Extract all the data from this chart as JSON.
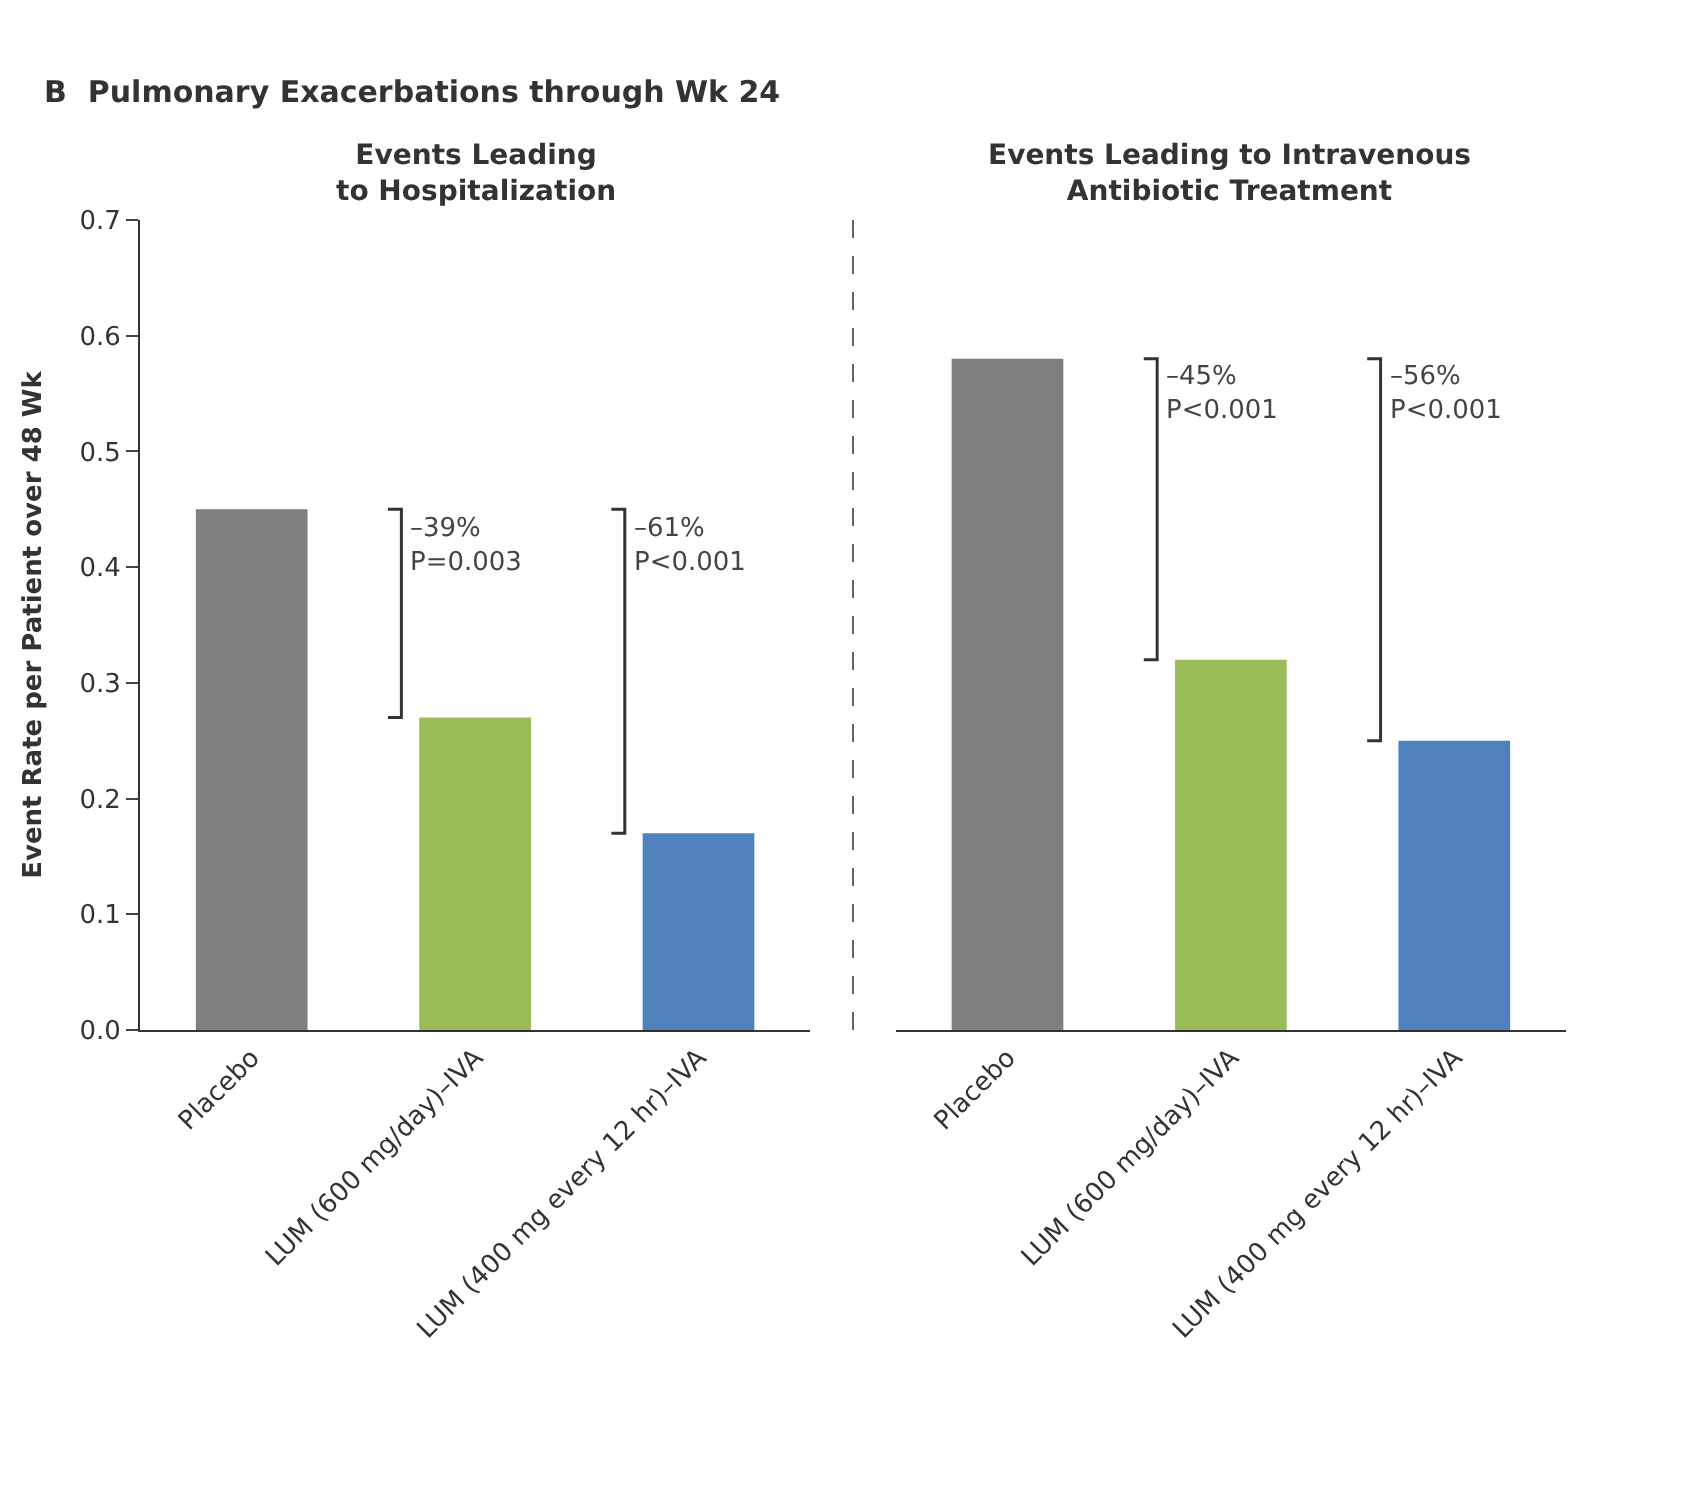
{
  "chart_data": [
    {
      "type": "bar",
      "title": "B  Pulmonary Exacerbations through Wk 24",
      "subtitle": "Events Leading\nto Hospitalization",
      "ylabel": "Event Rate per Patient over 48 Wk",
      "categories": [
        "Placebo",
        "LUM (600 mg/day)–IVA",
        "LUM (400 mg every 12 hr)–IVA"
      ],
      "values": [
        0.45,
        0.27,
        0.17
      ],
      "colors": [
        "#7f7f7f",
        "#9bbb59",
        "#4f81bd"
      ],
      "ylim": [
        0,
        0.7
      ],
      "yticks": [
        {
          "value": 0,
          "label": "0.0"
        },
        0.1,
        0.2,
        0.3,
        0.4,
        0.5,
        0.6,
        0.7
      ],
      "annotations": [
        "–39%\nP=0.003",
        "–61%\nP<0.001"
      ]
    },
    {
      "type": "bar",
      "subtitle": "Events Leading to Intravenous\nAntibiotic Treatment",
      "categories": [
        "Placebo",
        "LUM (600 mg/day)–IVA",
        "LUM (400 mg every 12 hr)–IVA"
      ],
      "values": [
        0.58,
        0.32,
        0.25
      ],
      "colors": [
        "#7f7f7f",
        "#9bbb59",
        "#4f81bd"
      ],
      "ylim": [
        0,
        0.7
      ],
      "tick_labels": "x",
      "annotations": [
        "–45%\nP<0.001",
        "–56%\nP<0.001"
      ]
    }
  ]
}
